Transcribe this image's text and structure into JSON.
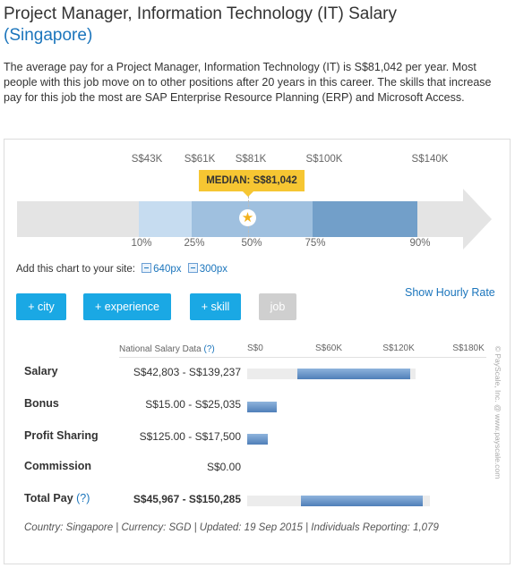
{
  "header": {
    "title": "Project Manager, Information Technology (IT) Salary",
    "location": "(Singapore)"
  },
  "description": "The average pay for a Project Manager, Information Technology (IT) is S$81,042 per year. Most people with this job move on to other positions after 20 years in this career. The skills that increase pay for this job the most are SAP Enterprise Resource Planning (ERP) and Microsoft Access.",
  "distribution": {
    "amounts": [
      "S$43K",
      "S$61K",
      "S$81K",
      "S$100K",
      "S$140K"
    ],
    "percentiles": [
      "10%",
      "25%",
      "50%",
      "75%",
      "90%"
    ],
    "median_label": "MEDIAN: S$81,042",
    "colors": {
      "p10_p25": "#c6dcf0",
      "p25_p75": "#9fc0df",
      "p75_p90": "#729fc9",
      "arrow": "#e4e4e4",
      "median": "#f6c632"
    }
  },
  "embed": {
    "label": "Add this chart to your site:",
    "option1": "640px",
    "option2": "300px"
  },
  "filters": [
    {
      "label": "+ city",
      "enabled": true
    },
    {
      "label": "+ experience",
      "enabled": true
    },
    {
      "label": "+ skill",
      "enabled": true
    },
    {
      "label": "job",
      "enabled": false
    }
  ],
  "hourly_link": "Show Hourly Rate",
  "table": {
    "source_label": "National Salary Data",
    "source_help": "(?)",
    "axis": [
      "S$0",
      "S$60K",
      "S$120K",
      "S$180K"
    ],
    "axis_max": 180000,
    "rows": [
      {
        "label": "Salary",
        "help": "",
        "value": "S$42,803 - S$139,237",
        "bold_value": false,
        "low": 42803,
        "high": 139237,
        "track": true
      },
      {
        "label": "Bonus",
        "help": "",
        "value": "S$15.00 - S$25,035",
        "bold_value": false,
        "low": 15,
        "high": 25035,
        "track": false
      },
      {
        "label": "Profit Sharing",
        "help": "",
        "value": "S$125.00 - S$17,500",
        "bold_value": false,
        "low": 125,
        "high": 17500,
        "track": false
      },
      {
        "label": "Commission",
        "help": "",
        "value": "S$0.00",
        "bold_value": false,
        "low": 0,
        "high": 0,
        "track": false
      },
      {
        "label": "Total Pay",
        "help": "(?)",
        "value": "S$45,967 - S$150,285",
        "bold_value": true,
        "low": 45967,
        "high": 150285,
        "track": true
      }
    ]
  },
  "copyright": "© PayScale, Inc. @ www.payscale.com",
  "footer": "Country: Singapore | Currency: SGD | Updated: 19 Sep 2015 | Individuals Reporting: 1,079"
}
